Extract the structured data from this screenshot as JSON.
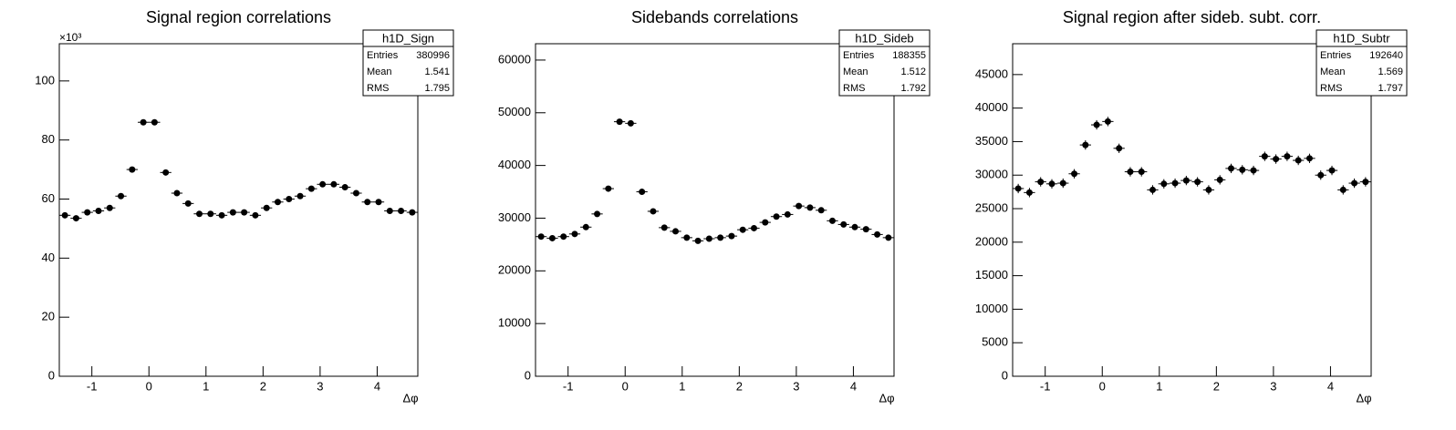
{
  "chart_data": [
    {
      "type": "histogram",
      "title": "Signal region correlations",
      "xlabel": "Δφ",
      "y_multiplier": "×10³",
      "bins": [
        -1.5708,
        -1.3744,
        -1.1781,
        -0.9817,
        -0.7854,
        -0.589,
        -0.3927,
        -0.1963,
        0,
        0.1963,
        0.3927,
        0.589,
        0.7854,
        0.9817,
        1.1781,
        1.3744,
        1.5708,
        1.7671,
        1.9635,
        2.1598,
        2.3562,
        2.5525,
        2.7489,
        2.9452,
        3.1416,
        3.3379,
        3.5343,
        3.7306,
        3.927,
        4.1233,
        4.3197,
        4.516,
        4.7124
      ],
      "values": [
        54.5,
        53.5,
        55.5,
        56,
        57,
        61,
        70,
        86,
        86,
        69,
        62,
        58.5,
        55,
        55,
        54.5,
        55.5,
        55.5,
        54.5,
        57,
        59,
        60,
        61,
        63.5,
        65,
        65,
        64,
        62,
        59,
        59,
        56,
        56,
        55.5
      ],
      "color": "#000000",
      "xlim": [
        -1.5708,
        4.7124
      ],
      "ylim": [
        0,
        112.6
      ],
      "xticks": [
        -1,
        0,
        1,
        2,
        3,
        4
      ],
      "yticks": [
        0,
        20,
        40,
        60,
        80,
        100
      ],
      "stats": {
        "name": "h1D_Sign",
        "labels": [
          "Entries",
          "Mean",
          "RMS"
        ],
        "values": [
          380996,
          1.541,
          1.795
        ]
      }
    },
    {
      "type": "histogram",
      "title": "Sidebands correlations",
      "xlabel": "Δφ",
      "bins": [
        -1.5708,
        -1.3744,
        -1.1781,
        -0.9817,
        -0.7854,
        -0.589,
        -0.3927,
        -0.1963,
        0,
        0.1963,
        0.3927,
        0.589,
        0.7854,
        0.9817,
        1.1781,
        1.3744,
        1.5708,
        1.7671,
        1.9635,
        2.1598,
        2.3562,
        2.5525,
        2.7489,
        2.9452,
        3.1416,
        3.3379,
        3.5343,
        3.7306,
        3.927,
        4.1233,
        4.3197,
        4.516,
        4.7124
      ],
      "values": [
        26500,
        26200,
        26500,
        27000,
        28300,
        30800,
        35600,
        48300,
        48000,
        35000,
        31300,
        28200,
        27500,
        26300,
        25700,
        26100,
        26300,
        26600,
        27800,
        28100,
        29200,
        30300,
        30700,
        32300,
        32000,
        31500,
        29500,
        28800,
        28300,
        27900,
        26900,
        26300
      ],
      "color": "#000000",
      "xlim": [
        -1.5708,
        4.7124
      ],
      "ylim": [
        0,
        63100
      ],
      "xticks": [
        -1,
        0,
        1,
        2,
        3,
        4
      ],
      "yticks": [
        0,
        10000,
        20000,
        30000,
        40000,
        50000,
        60000
      ],
      "stats": {
        "name": "h1D_Sideb",
        "labels": [
          "Entries",
          "Mean",
          "RMS"
        ],
        "values": [
          188355,
          1.512,
          1.792
        ]
      }
    },
    {
      "type": "histogram",
      "title": "Signal region after sideb. subt. corr.",
      "xlabel": "Δφ",
      "bins": [
        -1.5708,
        -1.3744,
        -1.1781,
        -0.9817,
        -0.7854,
        -0.589,
        -0.3927,
        -0.1963,
        0,
        0.1963,
        0.3927,
        0.589,
        0.7854,
        0.9817,
        1.1781,
        1.3744,
        1.5708,
        1.7671,
        1.9635,
        2.1598,
        2.3562,
        2.5525,
        2.7489,
        2.9452,
        3.1416,
        3.3379,
        3.5343,
        3.7306,
        3.927,
        4.1233,
        4.3197,
        4.516,
        4.7124
      ],
      "values": [
        28000,
        27400,
        29000,
        28700,
        28800,
        30200,
        34500,
        37500,
        38000,
        34000,
        30500,
        30500,
        27800,
        28700,
        28800,
        29200,
        29000,
        27800,
        29300,
        31000,
        30800,
        30700,
        32800,
        32400,
        32800,
        32200,
        32500,
        30000,
        30700,
        27800,
        28800,
        29000
      ],
      "errors": [
        700,
        700,
        700,
        700,
        700,
        700,
        700,
        700,
        700,
        700,
        700,
        700,
        700,
        700,
        700,
        700,
        700,
        700,
        700,
        700,
        700,
        700,
        700,
        700,
        700,
        700,
        700,
        700,
        700,
        700,
        700,
        700
      ],
      "color": "#000000",
      "xlim": [
        -1.5708,
        4.7124
      ],
      "ylim": [
        0,
        49600
      ],
      "xticks": [
        -1,
        0,
        1,
        2,
        3,
        4
      ],
      "yticks": [
        0,
        5000,
        10000,
        15000,
        20000,
        25000,
        30000,
        35000,
        40000,
        45000
      ],
      "stats": {
        "name": "h1D_Subtr",
        "labels": [
          "Entries",
          "Mean",
          "RMS"
        ],
        "values": [
          192640,
          1.569,
          1.797
        ]
      }
    }
  ]
}
